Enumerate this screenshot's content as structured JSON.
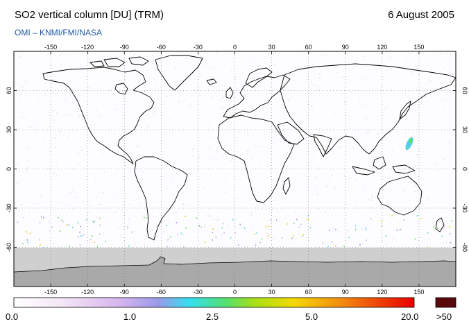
{
  "header": {
    "title": "SO2 vertical column [DU] (TRM)",
    "date": "6 August 2005",
    "credit": "OMI  –  KNMI/FMI/NASA"
  },
  "map": {
    "projection": "equirectangular",
    "lon_range": [
      -180,
      180
    ],
    "lat_range": [
      -90,
      90
    ],
    "lon_ticks": [
      -150,
      -120,
      -90,
      -60,
      -30,
      0,
      30,
      60,
      90,
      120,
      150
    ],
    "lat_ticks": [
      60,
      30,
      0,
      -30,
      -60
    ],
    "grid": "dotted",
    "no_data_color": "#cfcfcf",
    "antarctica_color": "#a9a9a9"
  },
  "colorbar": {
    "labels": [
      "0.0",
      "1.0",
      "2.5",
      "5.0",
      "20.0",
      ">50"
    ],
    "overflow_color": "#5a0a0a"
  }
}
